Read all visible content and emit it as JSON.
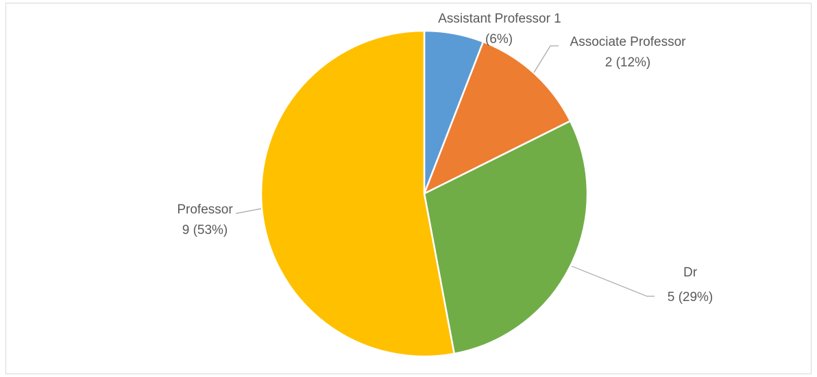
{
  "chart_data": {
    "type": "pie",
    "start_angle_deg": 0,
    "direction": "clockwise",
    "legend": "none",
    "colors": {
      "slice_border": "#ffffff",
      "leader_line": "#a6a6a6",
      "label_text": "#595959"
    },
    "slices": [
      {
        "category": "Assistant Professor",
        "value": 1,
        "percent_label": "(6%)",
        "label_lines": [
          "Assistant Professor 1",
          "(6%)"
        ],
        "color": "#5b9bd5"
      },
      {
        "category": "Associate Professor",
        "value": 2,
        "percent_label": "(12%)",
        "label_lines": [
          "Associate Professor",
          "2 (12%)"
        ],
        "color": "#ed7d31"
      },
      {
        "category": "Dr",
        "value": 5,
        "percent_label": "(29%)",
        "label_lines": [
          "Dr",
          "5 (29%)"
        ],
        "color": "#70ad47"
      },
      {
        "category": "Professor",
        "value": 9,
        "percent_label": "(53%)",
        "label_lines": [
          "Professor",
          "9 (53%)"
        ],
        "color": "#ffc000"
      }
    ]
  }
}
